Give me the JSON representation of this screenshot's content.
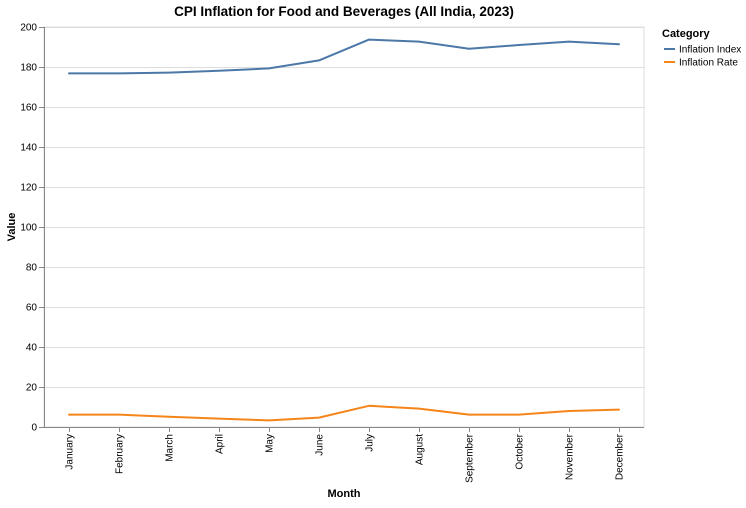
{
  "chart_data": {
    "type": "line",
    "title": "CPI Inflation for Food and Beverages (All India, 2023)",
    "xlabel": "Month",
    "ylabel": "Value",
    "ylim": [
      0,
      200
    ],
    "y_ticks": [
      0,
      20,
      40,
      60,
      80,
      100,
      120,
      140,
      160,
      180,
      200
    ],
    "grid": true,
    "legend": {
      "title": "Category",
      "placement": "top-right"
    },
    "categories": [
      "January",
      "February",
      "March",
      "April",
      "May",
      "June",
      "July",
      "August",
      "September",
      "October",
      "November",
      "December"
    ],
    "series": [
      {
        "name": "Inflation Index",
        "color": "#4c78a8",
        "values": [
          176.8,
          176.8,
          177.2,
          178.1,
          179.3,
          183.3,
          193.7,
          192.7,
          189.1,
          191.0,
          192.7,
          191.4
        ]
      },
      {
        "name": "Inflation Rate",
        "color": "#f58518",
        "values": [
          6.2,
          6.2,
          5.1,
          4.2,
          3.3,
          4.7,
          10.6,
          9.2,
          6.2,
          6.2,
          8.0,
          8.7
        ]
      }
    ]
  }
}
